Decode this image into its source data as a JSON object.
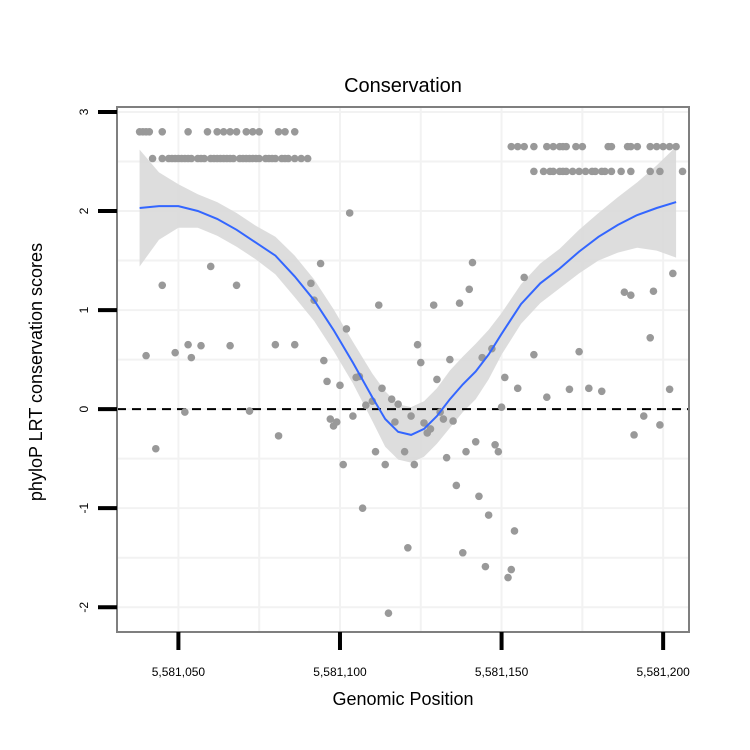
{
  "chart_data": {
    "type": "scatter",
    "title": "Conservation",
    "xlabel": "Genomic Position",
    "ylabel": "phyloP LRT conservation scores",
    "xlim": [
      5581031,
      5581208
    ],
    "ylim": [
      -2.25,
      3.05
    ],
    "x_ticks": [
      5581050,
      5581100,
      5581150,
      5581200
    ],
    "x_tick_labels": [
      "5,581,050",
      "5,581,100",
      "5,581,150",
      "5,581,200"
    ],
    "y_ticks": [
      -2,
      -1,
      0,
      1,
      2,
      3
    ],
    "y_tick_labels": [
      "-2",
      "-1",
      "0",
      "1",
      "2",
      "3"
    ],
    "reference_line": {
      "y": 0,
      "style": "dashed"
    },
    "colors": {
      "points": "#999999",
      "smooth": "#3366ff",
      "band": "#d9d9d9",
      "grid": "#f2f2f2",
      "frame": "#7f7f7f"
    },
    "points": [
      [
        5581038,
        2.8
      ],
      [
        5581039,
        2.8
      ],
      [
        5581040,
        2.8
      ],
      [
        5581041,
        2.8
      ],
      [
        5581045,
        2.8
      ],
      [
        5581053,
        2.8
      ],
      [
        5581059,
        2.8
      ],
      [
        5581062,
        2.8
      ],
      [
        5581064,
        2.8
      ],
      [
        5581066,
        2.8
      ],
      [
        5581068,
        2.8
      ],
      [
        5581071,
        2.8
      ],
      [
        5581073,
        2.8
      ],
      [
        5581075,
        2.8
      ],
      [
        5581081,
        2.8
      ],
      [
        5581083,
        2.8
      ],
      [
        5581086,
        2.8
      ],
      [
        5581042,
        2.53
      ],
      [
        5581045,
        2.53
      ],
      [
        5581047,
        2.53
      ],
      [
        5581048,
        2.53
      ],
      [
        5581049,
        2.53
      ],
      [
        5581050,
        2.53
      ],
      [
        5581051,
        2.53
      ],
      [
        5581052,
        2.53
      ],
      [
        5581053,
        2.53
      ],
      [
        5581054,
        2.53
      ],
      [
        5581056,
        2.53
      ],
      [
        5581057,
        2.53
      ],
      [
        5581058,
        2.53
      ],
      [
        5581060,
        2.53
      ],
      [
        5581061,
        2.53
      ],
      [
        5581062,
        2.53
      ],
      [
        5581063,
        2.53
      ],
      [
        5581064,
        2.53
      ],
      [
        5581065,
        2.53
      ],
      [
        5581066,
        2.53
      ],
      [
        5581067,
        2.53
      ],
      [
        5581069,
        2.53
      ],
      [
        5581070,
        2.53
      ],
      [
        5581071,
        2.53
      ],
      [
        5581072,
        2.53
      ],
      [
        5581073,
        2.53
      ],
      [
        5581074,
        2.53
      ],
      [
        5581075,
        2.53
      ],
      [
        5581077,
        2.53
      ],
      [
        5581078,
        2.53
      ],
      [
        5581079,
        2.53
      ],
      [
        5581080,
        2.53
      ],
      [
        5581082,
        2.53
      ],
      [
        5581083,
        2.53
      ],
      [
        5581084,
        2.53
      ],
      [
        5581086,
        2.53
      ],
      [
        5581088,
        2.53
      ],
      [
        5581090,
        2.53
      ],
      [
        5581153,
        2.65
      ],
      [
        5581155,
        2.65
      ],
      [
        5581157,
        2.65
      ],
      [
        5581160,
        2.65
      ],
      [
        5581164,
        2.65
      ],
      [
        5581166,
        2.65
      ],
      [
        5581168,
        2.65
      ],
      [
        5581169,
        2.65
      ],
      [
        5581170,
        2.65
      ],
      [
        5581173,
        2.65
      ],
      [
        5581175,
        2.65
      ],
      [
        5581183,
        2.65
      ],
      [
        5581184,
        2.65
      ],
      [
        5581189,
        2.65
      ],
      [
        5581190,
        2.65
      ],
      [
        5581192,
        2.65
      ],
      [
        5581196,
        2.65
      ],
      [
        5581198,
        2.65
      ],
      [
        5581200,
        2.65
      ],
      [
        5581202,
        2.65
      ],
      [
        5581204,
        2.65
      ],
      [
        5581160,
        2.4
      ],
      [
        5581163,
        2.4
      ],
      [
        5581165,
        2.4
      ],
      [
        5581166,
        2.4
      ],
      [
        5581168,
        2.4
      ],
      [
        5581169,
        2.4
      ],
      [
        5581170,
        2.4
      ],
      [
        5581172,
        2.4
      ],
      [
        5581174,
        2.4
      ],
      [
        5581176,
        2.4
      ],
      [
        5581178,
        2.4
      ],
      [
        5581179,
        2.4
      ],
      [
        5581181,
        2.4
      ],
      [
        5581182,
        2.4
      ],
      [
        5581184,
        2.4
      ],
      [
        5581187,
        2.4
      ],
      [
        5581190,
        2.4
      ],
      [
        5581196,
        2.4
      ],
      [
        5581199,
        2.4
      ],
      [
        5581206,
        2.4
      ],
      [
        5581040,
        0.54
      ],
      [
        5581043,
        -0.4
      ],
      [
        5581045,
        1.25
      ],
      [
        5581049,
        0.57
      ],
      [
        5581052,
        -0.03
      ],
      [
        5581053,
        0.65
      ],
      [
        5581054,
        0.52
      ],
      [
        5581057,
        0.64
      ],
      [
        5581060,
        1.44
      ],
      [
        5581066,
        0.64
      ],
      [
        5581068,
        1.25
      ],
      [
        5581072,
        -0.02
      ],
      [
        5581080,
        0.65
      ],
      [
        5581081,
        -0.27
      ],
      [
        5581086,
        0.65
      ],
      [
        5581091,
        1.27
      ],
      [
        5581092,
        1.1
      ],
      [
        5581094,
        1.47
      ],
      [
        5581095,
        0.49
      ],
      [
        5581096,
        0.28
      ],
      [
        5581097,
        -0.1
      ],
      [
        5581098,
        -0.17
      ],
      [
        5581099,
        -0.13
      ],
      [
        5581100,
        0.24
      ],
      [
        5581101,
        -0.56
      ],
      [
        5581102,
        0.81
      ],
      [
        5581103,
        1.98
      ],
      [
        5581104,
        -0.07
      ],
      [
        5581105,
        0.32
      ],
      [
        5581106,
        0.33
      ],
      [
        5581107,
        -1.0
      ],
      [
        5581108,
        0.04
      ],
      [
        5581110,
        0.08
      ],
      [
        5581111,
        -0.43
      ],
      [
        5581112,
        1.05
      ],
      [
        5581113,
        0.21
      ],
      [
        5581114,
        -0.56
      ],
      [
        5581115,
        -2.06
      ],
      [
        5581116,
        0.1
      ],
      [
        5581117,
        -0.13
      ],
      [
        5581118,
        0.05
      ],
      [
        5581120,
        -0.43
      ],
      [
        5581121,
        -1.4
      ],
      [
        5581122,
        -0.07
      ],
      [
        5581123,
        -0.56
      ],
      [
        5581124,
        0.65
      ],
      [
        5581125,
        0.47
      ],
      [
        5581126,
        -0.14
      ],
      [
        5581127,
        -0.24
      ],
      [
        5581128,
        -0.2
      ],
      [
        5581129,
        1.05
      ],
      [
        5581130,
        0.3
      ],
      [
        5581131,
        -0.03
      ],
      [
        5581132,
        -0.1
      ],
      [
        5581133,
        -0.49
      ],
      [
        5581134,
        0.5
      ],
      [
        5581135,
        -0.12
      ],
      [
        5581136,
        -0.77
      ],
      [
        5581137,
        1.07
      ],
      [
        5581138,
        -1.45
      ],
      [
        5581139,
        -0.43
      ],
      [
        5581140,
        1.21
      ],
      [
        5581141,
        1.48
      ],
      [
        5581142,
        -0.33
      ],
      [
        5581143,
        -0.88
      ],
      [
        5581144,
        0.52
      ],
      [
        5581145,
        -1.59
      ],
      [
        5581146,
        -1.07
      ],
      [
        5581147,
        0.61
      ],
      [
        5581148,
        -0.36
      ],
      [
        5581149,
        -0.43
      ],
      [
        5581150,
        0.02
      ],
      [
        5581151,
        0.32
      ],
      [
        5581152,
        -1.7
      ],
      [
        5581153,
        -1.62
      ],
      [
        5581154,
        -1.23
      ],
      [
        5581155,
        0.21
      ],
      [
        5581157,
        1.33
      ],
      [
        5581160,
        0.55
      ],
      [
        5581164,
        0.12
      ],
      [
        5581171,
        0.2
      ],
      [
        5581174,
        0.58
      ],
      [
        5581177,
        0.21
      ],
      [
        5581181,
        0.18
      ],
      [
        5581188,
        1.18
      ],
      [
        5581190,
        1.15
      ],
      [
        5581191,
        -0.26
      ],
      [
        5581194,
        -0.07
      ],
      [
        5581196,
        0.72
      ],
      [
        5581197,
        1.19
      ],
      [
        5581199,
        -0.16
      ],
      [
        5581202,
        0.2
      ],
      [
        5581203,
        1.37
      ]
    ],
    "smooth_line": {
      "x": [
        5581038,
        5581044,
        5581050,
        5581056,
        5581062,
        5581068,
        5581074,
        5581080,
        5581086,
        5581092,
        5581098,
        5581104,
        5581110,
        5581114,
        5581118,
        5581122,
        5581126,
        5581130,
        5581134,
        5581138,
        5581142,
        5581146,
        5581150,
        5581156,
        5581162,
        5581168,
        5581174,
        5581180,
        5581186,
        5581192,
        5581198,
        5581204
      ],
      "y": [
        2.03,
        2.05,
        2.05,
        2.0,
        1.92,
        1.81,
        1.68,
        1.55,
        1.34,
        1.1,
        0.8,
        0.47,
        0.12,
        -0.1,
        -0.23,
        -0.26,
        -0.2,
        -0.07,
        0.1,
        0.25,
        0.38,
        0.55,
        0.76,
        1.06,
        1.27,
        1.42,
        1.59,
        1.74,
        1.86,
        1.96,
        2.03,
        2.09
      ],
      "lo": [
        1.44,
        1.71,
        1.83,
        1.83,
        1.75,
        1.64,
        1.51,
        1.36,
        1.13,
        0.89,
        0.59,
        0.26,
        -0.12,
        -0.38,
        -0.51,
        -0.54,
        -0.48,
        -0.35,
        -0.19,
        -0.03,
        0.1,
        0.3,
        0.55,
        0.86,
        1.07,
        1.22,
        1.37,
        1.5,
        1.58,
        1.63,
        1.6,
        1.53
      ],
      "hi": [
        2.62,
        2.39,
        2.27,
        2.17,
        2.09,
        1.98,
        1.85,
        1.74,
        1.55,
        1.31,
        1.01,
        0.68,
        0.36,
        0.18,
        0.05,
        0.02,
        0.08,
        0.21,
        0.39,
        0.53,
        0.66,
        0.8,
        0.97,
        1.26,
        1.47,
        1.62,
        1.81,
        1.98,
        2.14,
        2.29,
        2.46,
        2.65
      ]
    }
  }
}
